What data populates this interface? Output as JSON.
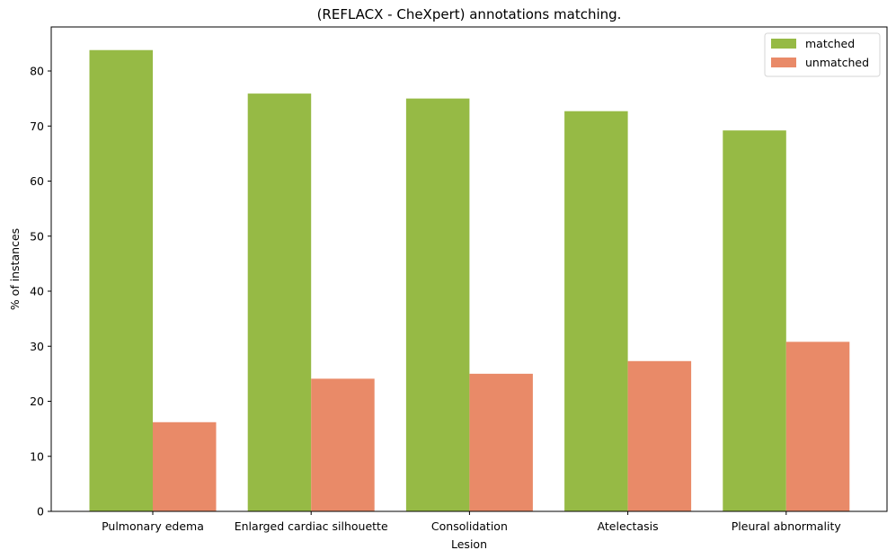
{
  "chart_data": {
    "type": "bar",
    "title": "(REFLACX - CheXpert) annotations matching.",
    "xlabel": "Lesion",
    "ylabel": "% of instances",
    "categories": [
      "Pulmonary edema",
      "Enlarged cardiac silhouette",
      "Consolidation",
      "Atelectasis",
      "Pleural abnormality"
    ],
    "series": [
      {
        "name": "matched",
        "color": "#96ba45",
        "values": [
          83.8,
          75.9,
          75.0,
          72.7,
          69.2
        ]
      },
      {
        "name": "unmatched",
        "color": "#e98a68",
        "values": [
          16.2,
          24.1,
          25.0,
          27.3,
          30.8
        ]
      }
    ],
    "ylim": [
      0,
      88
    ],
    "yticks": [
      0,
      10,
      20,
      30,
      40,
      50,
      60,
      70,
      80
    ],
    "grid": false,
    "legend": "top-right"
  }
}
